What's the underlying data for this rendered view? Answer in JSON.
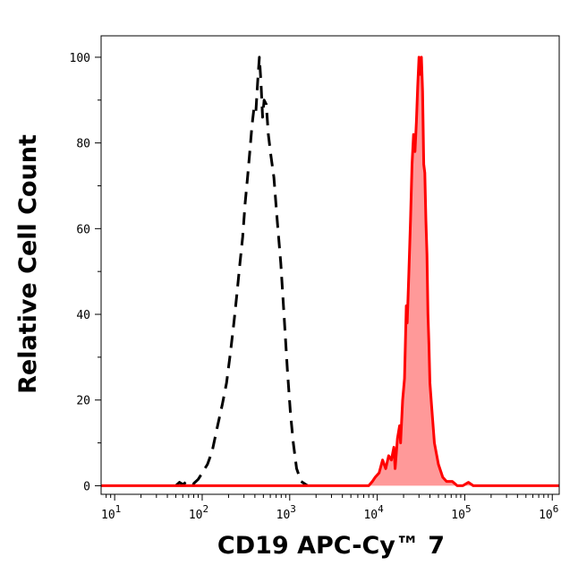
{
  "chart_data": {
    "type": "area",
    "xlabel": "CD19 APC-Cy™ 7",
    "ylabel": "Relative Cell Count",
    "x_scale": "log",
    "xlim": [
      7,
      1200000
    ],
    "ylim": [
      -2,
      105
    ],
    "grid": false,
    "x_ticks": [
      {
        "value": 10,
        "base": "10",
        "exp": "1"
      },
      {
        "value": 100,
        "base": "10",
        "exp": "2"
      },
      {
        "value": 1000,
        "base": "10",
        "exp": "3"
      },
      {
        "value": 10000,
        "base": "10",
        "exp": "4"
      },
      {
        "value": 100000,
        "base": "10",
        "exp": "5"
      },
      {
        "value": 1000000,
        "base": "10",
        "exp": "6"
      }
    ],
    "y_ticks": [
      0,
      20,
      40,
      60,
      80,
      100
    ],
    "series": [
      {
        "style": "dashed",
        "color": "#000000",
        "fill": "none",
        "points": [
          [
            50,
            0
          ],
          [
            55,
            0.8
          ],
          [
            60,
            0.3
          ],
          [
            70,
            1.2
          ],
          [
            80,
            0.5
          ],
          [
            90,
            1.5
          ],
          [
            100,
            3
          ],
          [
            115,
            5
          ],
          [
            130,
            8
          ],
          [
            150,
            14
          ],
          [
            170,
            19
          ],
          [
            190,
            24
          ],
          [
            210,
            31
          ],
          [
            230,
            38
          ],
          [
            250,
            45
          ],
          [
            270,
            52
          ],
          [
            290,
            58
          ],
          [
            310,
            66
          ],
          [
            330,
            72
          ],
          [
            350,
            78
          ],
          [
            370,
            84
          ],
          [
            390,
            88
          ],
          [
            410,
            87
          ],
          [
            430,
            94
          ],
          [
            450,
            100
          ],
          [
            470,
            94
          ],
          [
            490,
            86
          ],
          [
            510,
            90
          ],
          [
            540,
            89
          ],
          [
            570,
            82
          ],
          [
            610,
            77
          ],
          [
            660,
            72
          ],
          [
            720,
            62
          ],
          [
            790,
            52
          ],
          [
            860,
            40
          ],
          [
            940,
            27
          ],
          [
            1020,
            17
          ],
          [
            1100,
            10
          ],
          [
            1200,
            4
          ],
          [
            1350,
            1
          ],
          [
            1600,
            0
          ]
        ]
      },
      {
        "style": "solid",
        "color": "#ff0000",
        "fill": "#ff9999",
        "points": [
          [
            7,
            0
          ],
          [
            8000,
            0
          ],
          [
            8800,
            1
          ],
          [
            9500,
            2
          ],
          [
            10500,
            3
          ],
          [
            11500,
            6
          ],
          [
            12500,
            4
          ],
          [
            13500,
            7
          ],
          [
            14500,
            6
          ],
          [
            15500,
            9
          ],
          [
            16000,
            4
          ],
          [
            17000,
            11
          ],
          [
            18000,
            14
          ],
          [
            18500,
            10
          ],
          [
            19500,
            20
          ],
          [
            20500,
            25
          ],
          [
            21500,
            42
          ],
          [
            22000,
            38
          ],
          [
            23000,
            50
          ],
          [
            24000,
            62
          ],
          [
            25000,
            75
          ],
          [
            26000,
            82
          ],
          [
            27000,
            78
          ],
          [
            28000,
            85
          ],
          [
            29000,
            93
          ],
          [
            30000,
            100
          ],
          [
            31000,
            96
          ],
          [
            32000,
            100
          ],
          [
            33000,
            92
          ],
          [
            34000,
            75
          ],
          [
            35000,
            73
          ],
          [
            36000,
            62
          ],
          [
            37000,
            54
          ],
          [
            38000,
            40
          ],
          [
            39000,
            33
          ],
          [
            40000,
            24
          ],
          [
            42000,
            18
          ],
          [
            45000,
            10
          ],
          [
            50000,
            5
          ],
          [
            56000,
            2
          ],
          [
            62000,
            1
          ],
          [
            72000,
            1
          ],
          [
            82000,
            0
          ],
          [
            95000,
            0
          ],
          [
            110000,
            0.8
          ],
          [
            125000,
            0
          ],
          [
            150000,
            0
          ],
          [
            1200000,
            0
          ]
        ]
      }
    ]
  }
}
